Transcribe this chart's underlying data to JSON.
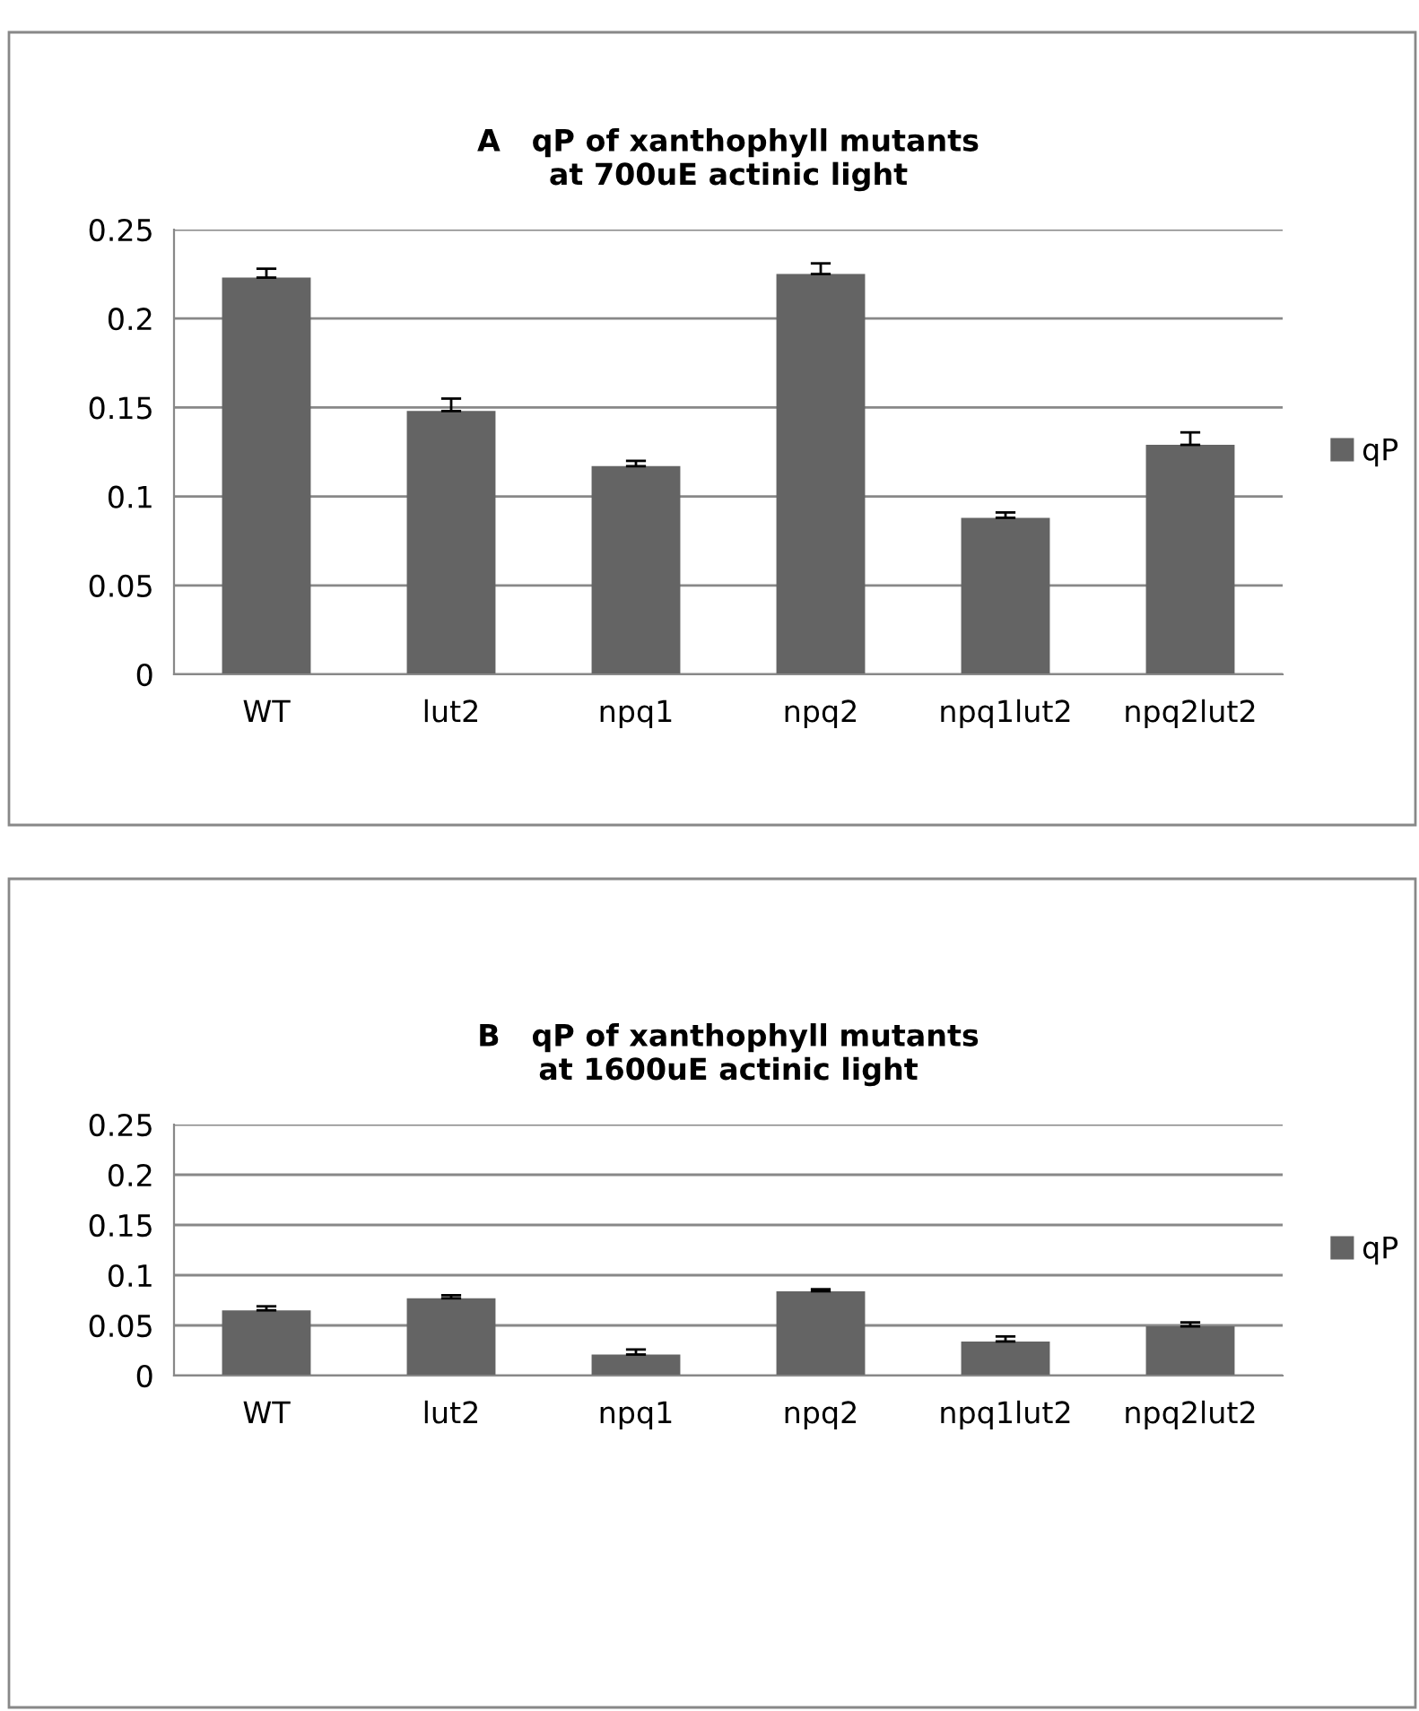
{
  "chart_data": [
    {
      "type": "bar",
      "title": "A   qP of xanthophyll mutants\nat 700uE actinic light",
      "categories": [
        "WT",
        "lut2",
        "npq1",
        "npq2",
        "npq1lut2",
        "npq2lut2"
      ],
      "series": [
        {
          "name": "qP",
          "color": "#646464",
          "values": [
            0.223,
            0.148,
            0.117,
            0.225,
            0.088,
            0.129
          ],
          "errors": [
            [
              0.223,
              0.228
            ],
            [
              0.148,
              0.155
            ],
            [
              0.117,
              0.12
            ],
            [
              0.225,
              0.231
            ],
            [
              0.088,
              0.091
            ],
            [
              0.129,
              0.136
            ]
          ]
        }
      ],
      "ylim": [
        0,
        0.25
      ],
      "yticks": [
        0,
        0.05,
        0.1,
        0.15,
        0.2,
        0.25
      ],
      "grid": "y",
      "legend": "right"
    },
    {
      "type": "bar",
      "title": "B   qP of xanthophyll mutants\nat 1600uE actinic light",
      "categories": [
        "WT",
        "lut2",
        "npq1",
        "npq2",
        "npq1lut2",
        "npq2lut2"
      ],
      "series": [
        {
          "name": "qP",
          "color": "#646464",
          "values": [
            0.065,
            0.077,
            0.021,
            0.084,
            0.034,
            0.049
          ],
          "errors": [
            [
              0.065,
              0.069
            ],
            [
              0.077,
              0.08
            ],
            [
              0.021,
              0.026
            ],
            [
              0.084,
              0.086
            ],
            [
              0.034,
              0.039
            ],
            [
              0.049,
              0.053
            ]
          ]
        }
      ],
      "ylim": [
        0,
        0.25
      ],
      "yticks": [
        0,
        0.05,
        0.1,
        0.15,
        0.2,
        0.25
      ],
      "grid": "y",
      "legend": "right"
    }
  ]
}
